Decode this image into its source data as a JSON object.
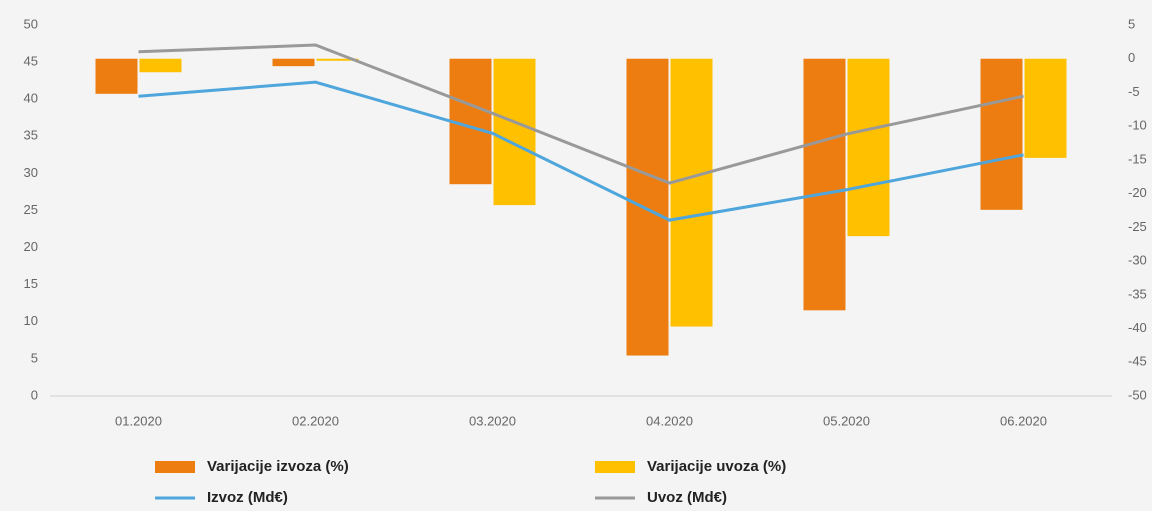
{
  "chart_data": {
    "type": "bar",
    "categories": [
      "01.2020",
      "02.2020",
      "03.2020",
      "04.2020",
      "05.2020",
      "06.2020"
    ],
    "series": [
      {
        "name": "Varijacije izvoza (%)",
        "type": "bar",
        "axis": "y2",
        "color": "#ed7d10",
        "values": [
          -5.2,
          -1.1,
          -18.6,
          -44.0,
          -37.3,
          -22.4
        ]
      },
      {
        "name": "Varijacije uvoza (%)",
        "type": "bar",
        "axis": "y2",
        "color": "#ffc000",
        "values": [
          -2.0,
          -0.3,
          -21.7,
          -39.7,
          -26.3,
          -14.7
        ]
      },
      {
        "name": "Izvoz (Md€)",
        "type": "line",
        "color": "#4ea6dc",
        "values": [
          40.4,
          42.3,
          35.4,
          23.7,
          27.8,
          32.5
        ]
      },
      {
        "name": "Uvoz (Md€)",
        "type": "line",
        "color": "#999999",
        "values": [
          46.4,
          47.3,
          38.1,
          28.7,
          35.3,
          40.4
        ]
      }
    ],
    "ylim": [
      0,
      50
    ],
    "yticks": [
      0,
      5,
      10,
      15,
      20,
      25,
      30,
      35,
      40,
      45,
      50
    ],
    "y2lim": [
      -50,
      5
    ],
    "y2ticks": [
      5,
      0,
      -5,
      -10,
      -15,
      -20,
      -25,
      -30,
      -35,
      -40,
      -45,
      -50
    ]
  }
}
